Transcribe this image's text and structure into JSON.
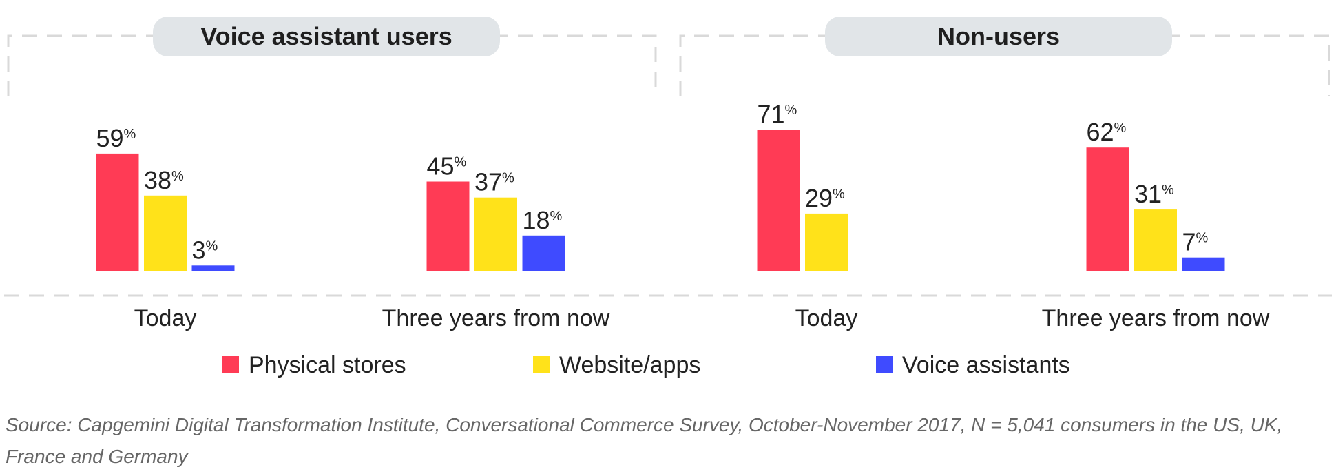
{
  "colors": {
    "physical_stores": "#FF3B55",
    "website_apps": "#FFE21A",
    "voice_assistants": "#3F4BFF",
    "pill_bg": "#E1E5E8",
    "dash": "#D9D9D9"
  },
  "chart_data": {
    "type": "bar",
    "series_names": [
      "Physical stores",
      "Website/apps",
      "Voice assistants"
    ],
    "groups": [
      {
        "title": "Voice assistant users",
        "clusters": [
          {
            "label": "Today",
            "values": [
              59,
              38,
              3
            ]
          },
          {
            "label": "Three years from now",
            "values": [
              45,
              37,
              18
            ]
          }
        ]
      },
      {
        "title": "Non-users",
        "clusters": [
          {
            "label": "Today",
            "values": [
              71,
              29,
              null
            ]
          },
          {
            "label": "Three years from now",
            "values": [
              62,
              31,
              7
            ]
          }
        ]
      }
    ],
    "value_suffix": "%",
    "ylim": [
      0,
      100
    ],
    "legend_position": "bottom",
    "grid": false
  },
  "source": "Source: Capgemini Digital Transformation Institute, Conversational Commerce Survey, October-November 2017, N = 5,041 consumers in the US, UK, France and Germany"
}
